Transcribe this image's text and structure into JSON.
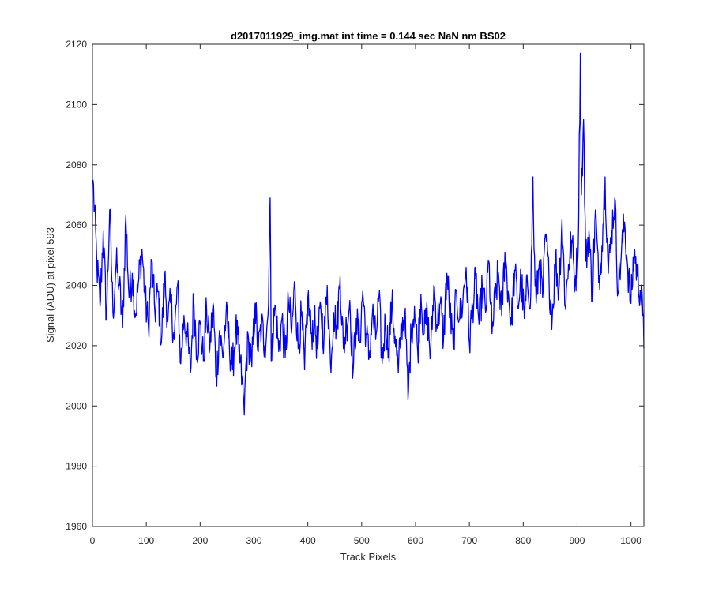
{
  "chart_data": {
    "type": "line",
    "title": "d2017011929_img.mat int time = 0.144 sec  NaN nm BS02",
    "xlabel": "Track Pixels",
    "ylabel": "Signal (ADU) at pixel 593",
    "xlim": [
      0,
      1024
    ],
    "ylim": [
      1960,
      2120
    ],
    "xticks": [
      0,
      100,
      200,
      300,
      400,
      500,
      600,
      700,
      800,
      900,
      1000
    ],
    "yticks": [
      1960,
      1980,
      2000,
      2020,
      2040,
      2060,
      2080,
      2100,
      2120
    ],
    "grid": false,
    "line_color": "#0000ff",
    "series": [
      {
        "x": [
          1,
          8,
          14,
          20,
          26,
          32,
          38,
          44,
          50,
          56,
          62,
          68,
          74,
          80,
          86,
          92,
          98,
          104,
          110,
          116,
          122,
          128,
          134,
          140,
          146,
          152,
          158,
          164,
          170,
          176,
          182,
          188,
          194,
          200,
          206,
          212,
          218,
          224,
          230,
          236,
          242,
          248,
          254,
          260,
          266,
          272,
          278,
          280,
          282,
          284,
          286,
          290,
          296,
          302,
          308,
          314,
          320,
          326,
          330,
          332,
          334,
          340,
          346,
          352,
          358,
          364,
          370,
          376,
          382,
          388,
          394,
          400,
          406,
          412,
          418,
          424,
          430,
          436,
          442,
          448,
          454,
          460,
          466,
          472,
          478,
          484,
          490,
          496,
          502,
          508,
          514,
          520,
          526,
          532,
          538,
          544,
          550,
          556,
          562,
          568,
          574,
          580,
          584,
          586,
          592,
          598,
          604,
          610,
          616,
          622,
          628,
          634,
          640,
          646,
          652,
          658,
          664,
          670,
          676,
          682,
          688,
          694,
          700,
          706,
          712,
          718,
          724,
          730,
          736,
          742,
          748,
          754,
          760,
          766,
          772,
          778,
          784,
          790,
          796,
          802,
          808,
          814,
          818,
          820,
          824,
          830,
          836,
          842,
          848,
          854,
          860,
          866,
          872,
          878,
          884,
          890,
          896,
          902,
          906,
          908,
          912,
          916,
          922,
          928,
          934,
          940,
          946,
          952,
          958,
          964,
          970,
          976,
          982,
          988,
          994,
          1000,
          1006,
          1012,
          1018,
          1022,
          1024
        ],
        "y": [
          2075,
          2048,
          2033,
          2058,
          2029,
          2065,
          2031,
          2047,
          2040,
          2026,
          2063,
          2036,
          2044,
          2030,
          2042,
          2052,
          2035,
          2026,
          2048,
          2031,
          2038,
          2021,
          2043,
          2028,
          2034,
          2022,
          2040,
          2014,
          2030,
          2023,
          2011,
          2036,
          2018,
          2027,
          2015,
          2032,
          2019,
          2034,
          2009,
          2025,
          2016,
          2030,
          2021,
          2012,
          2026,
          2018,
          2008,
          2004,
          1997,
          2010,
          2016,
          2022,
          2013,
          2034,
          2018,
          2027,
          2020,
          2030,
          2069,
          2015,
          2024,
          2033,
          2018,
          2029,
          2016,
          2035,
          2024,
          2041,
          2019,
          2030,
          2012,
          2036,
          2024,
          2028,
          2019,
          2033,
          2022,
          2040,
          2014,
          2031,
          2026,
          2043,
          2019,
          2027,
          2035,
          2011,
          2029,
          2021,
          2038,
          2024,
          2016,
          2031,
          2022,
          2036,
          2014,
          2028,
          2019,
          2034,
          2023,
          2011,
          2027,
          2030,
          2014,
          2002,
          2025,
          2033,
          2018,
          2037,
          2024,
          2030,
          2016,
          2040,
          2027,
          2034,
          2022,
          2044,
          2031,
          2019,
          2038,
          2029,
          2035,
          2046,
          2021,
          2033,
          2042,
          2027,
          2039,
          2031,
          2048,
          2024,
          2036,
          2044,
          2030,
          2051,
          2038,
          2027,
          2045,
          2033,
          2042,
          2029,
          2040,
          2037,
          2076,
          2052,
          2034,
          2048,
          2036,
          2057,
          2041,
          2030,
          2049,
          2038,
          2062,
          2033,
          2047,
          2055,
          2041,
          2052,
          2117,
          2070,
          2095,
          2048,
          2058,
          2036,
          2065,
          2041,
          2053,
          2076,
          2044,
          2058,
          2069,
          2038,
          2050,
          2061,
          2046,
          2034,
          2052,
          2043,
          2038,
          2030,
          2019
        ]
      }
    ]
  }
}
